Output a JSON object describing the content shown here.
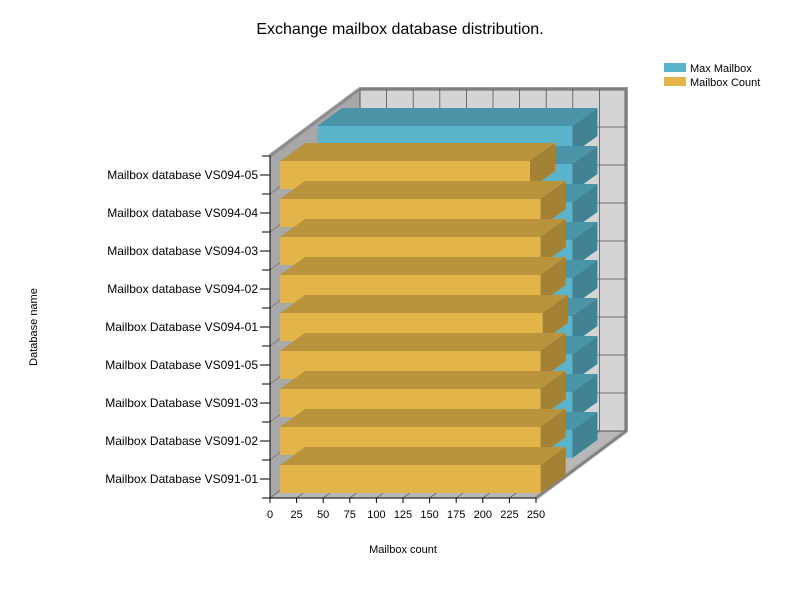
{
  "chart_data": {
    "type": "bar",
    "orientation": "horizontal",
    "three_d": true,
    "title": "Exchange mailbox database distribution.",
    "xlabel": "Mailbox count",
    "ylabel": "Database name",
    "xlim": [
      0,
      250
    ],
    "xticks": [
      0,
      25,
      50,
      75,
      100,
      125,
      150,
      175,
      200,
      225,
      250
    ],
    "grid": true,
    "legend_position": "top-right",
    "categories": [
      "Mailbox Database VS091-01",
      "Mailbox Database VS091-02",
      "Mailbox Database VS091-03",
      "Mailbox Database VS091-05",
      "Mailbox Database VS094-01",
      "Mailbox database VS094-02",
      "Mailbox database VS094-03",
      "Mailbox database VS094-04",
      "Mailbox database VS094-05"
    ],
    "series": [
      {
        "name": "Max Mailbox",
        "color": "#5ab4cc",
        "values": [
          240,
          240,
          240,
          240,
          240,
          240,
          240,
          240,
          240
        ]
      },
      {
        "name": "Mailbox Count",
        "color": "#e3b44a",
        "values": [
          245,
          245,
          245,
          245,
          247,
          245,
          245,
          245,
          235
        ]
      }
    ]
  }
}
